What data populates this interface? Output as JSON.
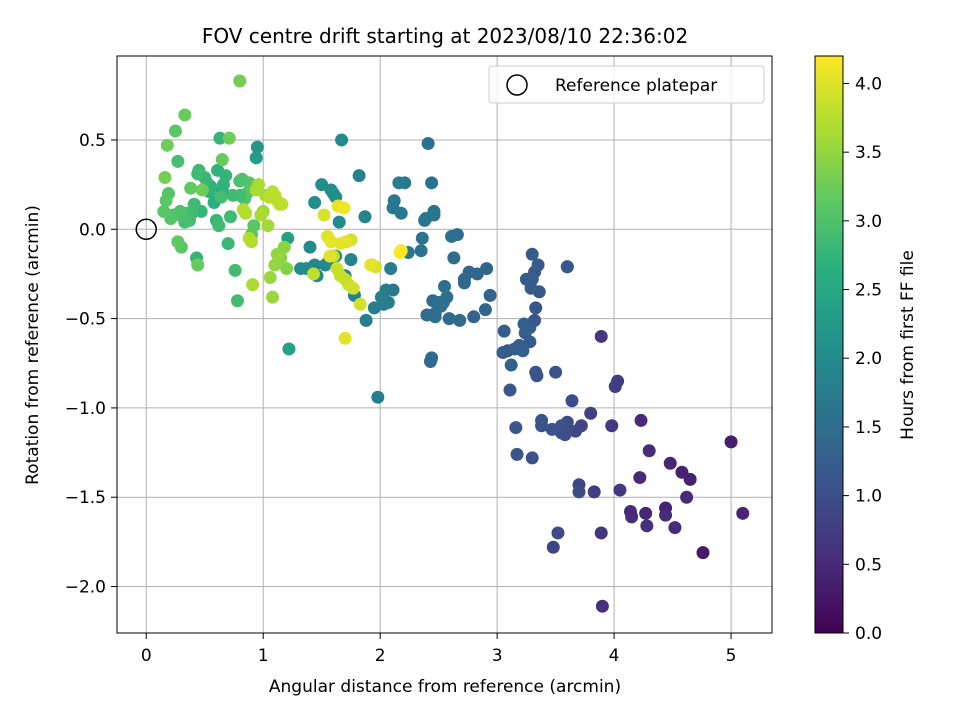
{
  "chart_data": {
    "type": "scatter",
    "title": "FOV centre drift starting at 2023/08/10 22:36:02",
    "xlabel": "Angular distance from reference (arcmin)",
    "ylabel": "Rotation from reference (arcmin)",
    "xlim": [
      -0.25,
      5.35
    ],
    "ylim": [
      -2.26,
      0.97
    ],
    "x_ticks": [
      0,
      1,
      2,
      3,
      4,
      5
    ],
    "x_tick_labels": [
      "0",
      "1",
      "2",
      "3",
      "4",
      "5"
    ],
    "y_ticks": [
      0.5,
      0.0,
      -0.5,
      -1.0,
      -1.5,
      -2.0
    ],
    "y_tick_labels": [
      "0.5",
      "0.0",
      "−0.5",
      "−1.0",
      "−1.5",
      "−2.0"
    ],
    "grid": true,
    "legend": {
      "position": "top-right",
      "entries": [
        "Reference platepar"
      ]
    },
    "reference_point": {
      "x": 0,
      "y": 0
    },
    "colorbar": {
      "label": "Hours from first FF file",
      "range": [
        0.0,
        4.2
      ],
      "colormap": "viridis",
      "ticks": [
        0.0,
        0.5,
        1.0,
        1.5,
        2.0,
        2.5,
        3.0,
        3.5,
        4.0
      ],
      "tick_labels": [
        "0.0",
        "0.5",
        "1.0",
        "1.5",
        "2.0",
        "2.5",
        "3.0",
        "3.5",
        "4.0"
      ]
    },
    "series": [
      {
        "x": [
          5.0,
          5.1,
          4.76,
          4.65,
          4.62,
          4.58,
          4.52,
          4.48,
          4.44,
          4.44,
          4.3,
          4.28,
          4.27,
          4.23,
          4.22,
          4.15,
          4.14,
          4.05,
          4.03,
          4.01,
          3.98,
          3.9,
          3.89,
          3.89,
          3.83,
          3.8,
          3.72
        ],
        "y": [
          -1.19,
          -1.59,
          -1.81,
          -1.4,
          -1.5,
          -1.36,
          -1.67,
          -1.31,
          -1.56,
          -1.6,
          -1.24,
          -1.66,
          -1.59,
          -1.07,
          -1.39,
          -1.61,
          -1.58,
          -1.46,
          -0.85,
          -0.88,
          -1.1,
          -2.11,
          -1.7,
          -0.6,
          -1.47,
          -1.03,
          -1.1
        ],
        "hours": [
          0.35,
          0.45,
          0.3,
          0.4,
          0.5,
          0.4,
          0.5,
          0.45,
          0.4,
          0.5,
          0.5,
          0.55,
          0.45,
          0.5,
          0.5,
          0.55,
          0.5,
          0.7,
          0.75,
          0.75,
          0.7,
          0.55,
          0.65,
          0.65,
          0.75,
          0.8,
          0.85
        ]
      },
      {
        "x": [
          3.7,
          3.7,
          3.67,
          3.64,
          3.61,
          3.6,
          3.58,
          3.56,
          3.55,
          3.55,
          3.52,
          3.5,
          3.48,
          3.47,
          3.38,
          3.38,
          3.34,
          3.33,
          3.32,
          3.3,
          3.3,
          3.25,
          3.17,
          3.16,
          3.11,
          3.09,
          3.35,
          3.36,
          3.33,
          3.32,
          3.29,
          3.3,
          3.28,
          3.28,
          3.19,
          3.22,
          3.15,
          3.05,
          3.06,
          3.12,
          3.19,
          3.24,
          3.23,
          3.27,
          3.6,
          3.6
        ],
        "y": [
          -1.43,
          -1.47,
          -1.13,
          -0.96,
          -1.12,
          -1.08,
          -1.15,
          -1.11,
          -1.14,
          -1.1,
          -1.7,
          -0.8,
          -1.78,
          -1.12,
          -1.07,
          -1.1,
          -0.82,
          -0.8,
          -0.24,
          -0.14,
          -1.28,
          -0.28,
          -1.26,
          -1.11,
          -0.9,
          -0.68,
          -0.2,
          -0.35,
          -0.44,
          -0.51,
          -0.33,
          -0.28,
          -0.63,
          -0.55,
          -0.67,
          -0.68,
          -0.67,
          -0.69,
          -0.57,
          -0.76,
          -0.65,
          -0.58,
          -0.53,
          -0.55,
          -0.21,
          -0.21
        ],
        "hours": [
          0.9,
          0.95,
          0.9,
          1.0,
          0.95,
          1.0,
          1.0,
          0.95,
          1.0,
          1.05,
          0.95,
          1.05,
          0.9,
          1.05,
          1.1,
          1.1,
          1.05,
          1.1,
          1.15,
          1.2,
          1.05,
          1.2,
          1.1,
          1.15,
          1.15,
          1.2,
          1.2,
          1.15,
          1.15,
          1.1,
          1.2,
          1.25,
          1.2,
          1.2,
          1.2,
          1.25,
          1.25,
          1.25,
          1.25,
          1.3,
          1.3,
          1.3,
          1.3,
          1.25,
          1.1,
          1.15
        ]
      },
      {
        "x": [
          2.91,
          2.94,
          2.9,
          2.83,
          2.8,
          2.76,
          2.72,
          2.72,
          2.68,
          2.66,
          2.63,
          2.61,
          2.59,
          2.57,
          2.54,
          2.47,
          2.47,
          2.45,
          2.44,
          2.43,
          2.4,
          2.5,
          2.52,
          2.55,
          2.46,
          2.46,
          2.44,
          2.41,
          2.39,
          2.38,
          2.36,
          2.35,
          2.24,
          2.21,
          2.18,
          2.16,
          2.12,
          2.11,
          2.11,
          2.09,
          2.07,
          2.05,
          2.03,
          2.01,
          1.98,
          1.95,
          1.88,
          1.87,
          1.82,
          1.78,
          1.75,
          1.7,
          1.67,
          1.62
        ],
        "y": [
          -0.22,
          -0.37,
          -0.45,
          -0.25,
          -0.49,
          -0.24,
          -0.28,
          -0.3,
          -0.51,
          -0.03,
          -0.16,
          -0.04,
          -0.5,
          -0.38,
          -0.41,
          -0.47,
          -0.49,
          -0.4,
          -0.72,
          -0.74,
          -0.48,
          -0.41,
          -0.43,
          -0.32,
          0.08,
          0.1,
          0.26,
          0.48,
          0.06,
          0.05,
          -0.05,
          -0.12,
          -0.13,
          0.26,
          0.09,
          0.26,
          0.16,
          0.12,
          -0.34,
          -0.22,
          -0.41,
          -0.34,
          -0.42,
          -0.38,
          -0.94,
          -0.44,
          -0.51,
          0.07,
          0.3,
          -0.37,
          -0.17,
          -0.26,
          0.5,
          -0.15
        ],
        "hours": [
          1.35,
          1.35,
          1.35,
          1.4,
          1.35,
          1.4,
          1.45,
          1.4,
          1.45,
          1.5,
          1.5,
          1.55,
          1.45,
          1.5,
          1.5,
          1.5,
          1.55,
          1.5,
          1.45,
          1.45,
          1.45,
          1.55,
          1.55,
          1.55,
          1.6,
          1.65,
          1.6,
          1.55,
          1.65,
          1.65,
          1.6,
          1.6,
          1.65,
          1.7,
          1.7,
          1.75,
          1.7,
          1.7,
          1.7,
          1.75,
          1.75,
          1.75,
          1.75,
          1.8,
          1.8,
          1.8,
          1.8,
          1.85,
          1.85,
          1.85,
          1.85,
          1.85,
          2.0,
          1.95
        ]
      },
      {
        "x": [
          1.65,
          1.62,
          1.6,
          1.58,
          1.56,
          1.53,
          1.5,
          1.46,
          1.44,
          1.44,
          1.4,
          1.37,
          1.32,
          1.22,
          1.21,
          0.95,
          0.94
        ],
        "y": [
          0.04,
          0.18,
          0.2,
          0.22,
          -0.18,
          -0.2,
          0.25,
          -0.26,
          -0.2,
          0.15,
          -0.1,
          -0.22,
          -0.22,
          -0.67,
          -0.05,
          0.46,
          0.4
        ],
        "hours": [
          2.0,
          2.0,
          2.05,
          2.05,
          1.95,
          1.95,
          2.05,
          1.95,
          1.95,
          2.05,
          2.0,
          2.0,
          2.0,
          2.4,
          2.35,
          2.2,
          2.3
        ]
      },
      {
        "x": [
          0.55,
          0.52,
          0.5,
          0.47,
          0.45,
          0.44,
          0.43,
          0.41,
          0.39,
          0.37,
          0.35,
          0.33,
          0.31,
          0.29,
          0.27,
          0.25,
          0.23,
          0.21,
          0.19,
          0.17,
          0.15,
          0.54,
          0.58,
          0.61,
          0.63,
          0.65,
          0.66,
          0.68,
          0.7,
          0.72,
          0.74,
          0.76,
          0.78,
          0.8,
          0.82,
          0.84,
          0.86,
          0.88,
          0.9,
          0.92,
          0.8,
          0.6,
          0.62,
          0.64,
          0.3,
          0.27,
          0.38,
          0.33,
          0.44,
          0.48,
          0.65,
          0.71,
          0.18,
          0.16
        ],
        "y": [
          0.24,
          0.26,
          0.29,
          0.1,
          0.33,
          0.31,
          -0.16,
          0.14,
          0.09,
          0.05,
          0.09,
          0.04,
          0.07,
          0.1,
          0.38,
          0.55,
          0.08,
          0.06,
          0.2,
          0.16,
          0.1,
          0.21,
          0.15,
          0.33,
          0.51,
          0.22,
          0.25,
          0.3,
          -0.08,
          0.07,
          0.19,
          -0.23,
          -0.4,
          0.27,
          0.28,
          0.17,
          0.2,
          0.26,
          -0.03,
          0.02,
          0.19,
          0.05,
          0.02,
          0.18,
          -0.1,
          -0.07,
          0.23,
          0.64,
          -0.2,
          0.22,
          0.39,
          0.51,
          0.47,
          0.29
        ],
        "hours": [
          2.7,
          2.75,
          2.8,
          2.75,
          2.8,
          2.85,
          2.75,
          2.85,
          2.85,
          2.9,
          2.9,
          2.95,
          2.95,
          3.0,
          2.95,
          3.1,
          3.0,
          3.05,
          3.05,
          3.1,
          3.1,
          2.7,
          2.65,
          2.7,
          2.75,
          2.6,
          2.7,
          2.75,
          2.8,
          2.85,
          2.85,
          2.9,
          2.9,
          2.95,
          3.0,
          3.0,
          3.05,
          3.05,
          3.1,
          3.1,
          2.9,
          2.8,
          2.85,
          2.9,
          3.1,
          3.15,
          3.15,
          3.2,
          3.2,
          3.25,
          3.2,
          3.25,
          3.25,
          3.3
        ]
      },
      {
        "x": [
          0.8,
          1.2,
          1.18,
          1.15,
          1.12,
          1.1,
          1.08,
          1.06,
          1.04,
          1.02,
          1.0,
          0.98,
          0.96,
          0.94,
          0.91,
          0.9,
          0.88,
          0.85,
          0.83,
          1.05,
          1.08,
          1.12,
          1.1,
          1.14,
          1.16,
          1.43,
          1.6,
          1.63,
          1.66,
          1.7,
          1.73,
          1.75,
          1.77,
          1.83,
          1.93,
          1.96,
          1.52,
          1.55,
          1.57
        ],
        "y": [
          0.83,
          -0.22,
          -0.1,
          -0.16,
          -0.14,
          -0.2,
          -0.38,
          -0.27,
          0.02,
          0.19,
          0.1,
          0.08,
          0.25,
          0.22,
          -0.31,
          -0.07,
          -0.05,
          0.09,
          0.11,
          0.18,
          0.21,
          0.16,
          0.19,
          0.14,
          0.14,
          -0.25,
          -0.15,
          -0.22,
          -0.26,
          -0.28,
          -0.31,
          -0.06,
          -0.33,
          -0.42,
          -0.2,
          -0.21,
          0.08,
          -0.04,
          -0.15
        ],
        "hours": [
          3.3,
          3.4,
          3.45,
          3.45,
          3.5,
          3.5,
          3.55,
          3.55,
          3.6,
          3.6,
          3.6,
          3.65,
          3.65,
          3.65,
          3.65,
          3.7,
          3.7,
          3.7,
          3.7,
          3.75,
          3.75,
          3.75,
          3.75,
          3.8,
          3.8,
          3.8,
          3.8,
          3.85,
          3.85,
          3.85,
          3.85,
          3.9,
          3.9,
          3.9,
          3.95,
          3.95,
          3.95,
          4.0,
          4.0
        ]
      },
      {
        "x": [
          1.66,
          1.71,
          1.64,
          1.69,
          1.58,
          1.7,
          2.17,
          2.18,
          1.92
        ],
        "y": [
          -0.08,
          -0.07,
          0.13,
          0.12,
          -0.07,
          -0.61,
          -0.13,
          -0.12,
          -0.2
        ],
        "hours": [
          4.05,
          4.05,
          4.05,
          4.1,
          4.05,
          4.0,
          4.2,
          4.2,
          4.05
        ]
      }
    ]
  }
}
